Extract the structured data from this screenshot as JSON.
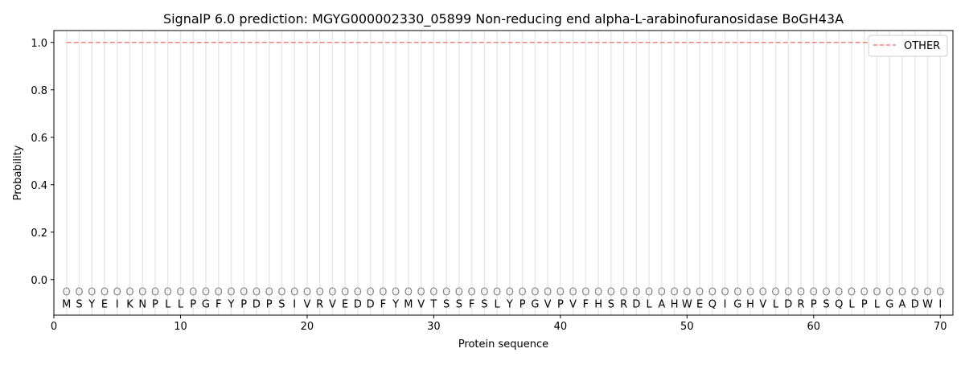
{
  "chart_data": {
    "type": "line",
    "title": "SignalP 6.0 prediction: MGYG000002330_05899 Non-reducing end alpha-L-arabinofuranosidase BoGH43A",
    "xlabel": "Protein sequence",
    "ylabel": "Probability",
    "xlim": [
      0,
      71
    ],
    "ylim": [
      -0.15,
      1.05
    ],
    "xticks": [
      0,
      10,
      20,
      30,
      40,
      50,
      60,
      70
    ],
    "yticks": [
      "0.0",
      "0.2",
      "0.4",
      "0.6",
      "0.8",
      "1.0"
    ],
    "grid": "vertical lines at each residue",
    "legend_position": "top-right",
    "sequence": "MSYEIKNPLLPGFYPDPSIVRVEDDFYMVTSSFSLYPGVPVFHSRDLAHWEQIGHVLDRPSQLPLGADWI",
    "region_labels": "OOOOOOOOOOOOOOOOOOOOOOOOOOOOOOOOOOOOOOOOOOOOOOOOOOOOOOOOOOOOOOOOOOOOOO",
    "series": [
      {
        "name": "OTHER",
        "color": "#f08080",
        "style": "dashed",
        "x_range": [
          1,
          70
        ],
        "value": 1.0
      }
    ]
  }
}
